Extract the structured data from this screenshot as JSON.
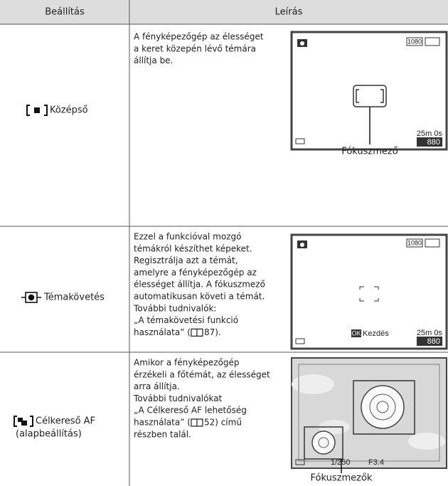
{
  "table": {
    "header": [
      "Beállítás",
      "Leírás"
    ],
    "rows": [
      {
        "setting": [
          "Középső"
        ],
        "description": [
          "A fényképezőgép az élességet",
          "a keret közepén lévő témára",
          "állítja be."
        ],
        "screen": {
          "resolution": "1080",
          "time": "25m 0s",
          "shots": "880"
        },
        "caption": "Fókuszmező"
      },
      {
        "setting": [
          "Témakövetés"
        ],
        "description": [
          "Ezzel a funkcióval mozgó",
          "témákról készíthet képeket.",
          "Regisztrálja azt a témát,",
          "amelyre a fényképezőgép az",
          "élességet állítja. A fókuszmező",
          "automatikusan követi a témát.",
          "További tudnivalók:",
          "„A témakövetési funkció"
        ],
        "reference": {
          "before": "használata” (",
          "after": "87)."
        },
        "screen": {
          "resolution": "1080",
          "ok": "OK",
          "start": "Kezdés",
          "time": "25m 0s",
          "shots": "880"
        }
      },
      {
        "setting": [
          "Célkereső AF",
          "(alapbeállítás)"
        ],
        "description": [
          "Amikor a fényképezőgép",
          "érzékeli a főtémát, az élességet",
          "arra állítja.",
          "További tudnivalókat",
          "„A Célkereső AF lehetőség"
        ],
        "reference": {
          "before": "használata” (",
          "after": "52) című"
        },
        "description_end": [
          "részben talál."
        ],
        "screen": {
          "shutter": "1/250",
          "aperture": "F3.4"
        },
        "caption": "Fókuszmezők"
      }
    ]
  }
}
